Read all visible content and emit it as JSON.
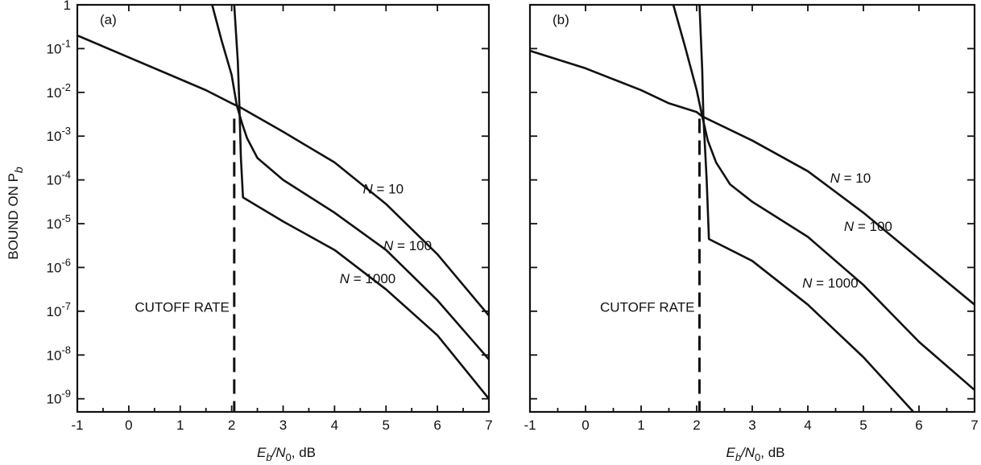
{
  "chart_data": [
    {
      "type": "line",
      "panel_label": "(a)",
      "xlabel": {
        "main": "E",
        "sub1": "b",
        "slash": "/N",
        "sub2": "0",
        "tail": ", dB"
      },
      "ylabel": {
        "main": "BOUND ON P",
        "sub": "b"
      },
      "xlim": [
        -1,
        7
      ],
      "ylim_log10": [
        -9.3,
        0
      ],
      "y_scale": "log",
      "x_ticks": [
        "-1",
        "0",
        "1",
        "2",
        "3",
        "4",
        "5",
        "6",
        "7"
      ],
      "y_ticks": [
        {
          "base": "1",
          "exp": ""
        },
        {
          "base": "10",
          "exp": "-1"
        },
        {
          "base": "10",
          "exp": "-2"
        },
        {
          "base": "10",
          "exp": "-3"
        },
        {
          "base": "10",
          "exp": "-4"
        },
        {
          "base": "10",
          "exp": "-5"
        },
        {
          "base": "10",
          "exp": "-6"
        },
        {
          "base": "10",
          "exp": "-7"
        },
        {
          "base": "10",
          "exp": "-8"
        },
        {
          "base": "10",
          "exp": "-9"
        }
      ],
      "cutoff": {
        "x": 2.05,
        "label": "CUTOFF RATE"
      },
      "series": [
        {
          "name": "N = 10",
          "label_pre": "N",
          "label_post": " = 10",
          "points": [
            [
              -1,
              -0.7
            ],
            [
              0,
              -1.2
            ],
            [
              1,
              -1.7
            ],
            [
              1.5,
              -1.95
            ],
            [
              2,
              -2.25
            ],
            [
              2.15,
              -2.33
            ],
            [
              3,
              -2.9
            ],
            [
              4,
              -3.6
            ],
            [
              5,
              -4.55
            ],
            [
              6,
              -5.7
            ],
            [
              7,
              -7.1
            ]
          ]
        },
        {
          "name": "N = 100",
          "label_pre": "N",
          "label_post": " = 100",
          "points": [
            [
              1.62,
              0
            ],
            [
              1.8,
              -0.8
            ],
            [
              2,
              -1.6
            ],
            [
              2.1,
              -2.3
            ],
            [
              2.2,
              -2.7
            ],
            [
              2.3,
              -3.05
            ],
            [
              2.5,
              -3.5
            ],
            [
              3,
              -4.0
            ],
            [
              4,
              -4.75
            ],
            [
              5,
              -5.6
            ],
            [
              6,
              -6.75
            ],
            [
              7,
              -8.1
            ]
          ]
        },
        {
          "name": "N = 1000",
          "label_pre": "N",
          "label_post": " = 1000",
          "points": [
            [
              2.05,
              0
            ],
            [
              2.12,
              -1.3
            ],
            [
              2.15,
              -2.3
            ],
            [
              2.18,
              -3.5
            ],
            [
              2.22,
              -4.4
            ],
            [
              3,
              -4.95
            ],
            [
              4,
              -5.6
            ],
            [
              5,
              -6.5
            ],
            [
              6,
              -7.55
            ],
            [
              7,
              -9.0
            ]
          ]
        }
      ],
      "annotations": [
        {
          "series": "N = 10",
          "x": 4.55,
          "y": -4.2
        },
        {
          "series": "N = 100",
          "x": 4.95,
          "y": -5.5
        },
        {
          "series": "N = 1000",
          "x": 4.1,
          "y": -6.25
        }
      ]
    },
    {
      "type": "line",
      "panel_label": "(b)",
      "xlabel": {
        "main": "E",
        "sub1": "b",
        "slash": "/N",
        "sub2": "0",
        "tail": ", dB"
      },
      "xlim": [
        -1,
        7
      ],
      "ylim_log10": [
        -9.3,
        0
      ],
      "y_scale": "log",
      "x_ticks": [
        "-1",
        "0",
        "1",
        "2",
        "3",
        "4",
        "5",
        "6",
        "7"
      ],
      "cutoff": {
        "x": 2.05,
        "label": "CUTOFF RATE"
      },
      "series": [
        {
          "name": "N = 10",
          "label_pre": "N",
          "label_post": " = 10",
          "points": [
            [
              -1,
              -1.05
            ],
            [
              0,
              -1.45
            ],
            [
              1,
              -1.95
            ],
            [
              1.5,
              -2.25
            ],
            [
              2,
              -2.45
            ],
            [
              2.1,
              -2.55
            ],
            [
              3,
              -3.1
            ],
            [
              4,
              -3.8
            ],
            [
              5,
              -4.75
            ],
            [
              6,
              -5.8
            ],
            [
              7,
              -6.85
            ]
          ]
        },
        {
          "name": "N = 100",
          "label_pre": "N",
          "label_post": " = 100",
          "points": [
            [
              1.58,
              0
            ],
            [
              1.8,
              -1.0
            ],
            [
              2,
              -1.95
            ],
            [
              2.1,
              -2.55
            ],
            [
              2.2,
              -3.1
            ],
            [
              2.35,
              -3.6
            ],
            [
              2.6,
              -4.1
            ],
            [
              3,
              -4.5
            ],
            [
              4,
              -5.3
            ],
            [
              5,
              -6.4
            ],
            [
              6,
              -7.7
            ],
            [
              7,
              -8.8
            ]
          ]
        },
        {
          "name": "N = 1000",
          "label_pre": "N",
          "label_post": " = 1000",
          "points": [
            [
              2.05,
              0
            ],
            [
              2.1,
              -1.5
            ],
            [
              2.12,
              -2.55
            ],
            [
              2.18,
              -4.0
            ],
            [
              2.22,
              -5.35
            ],
            [
              3,
              -5.85
            ],
            [
              4,
              -6.85
            ],
            [
              5,
              -8.05
            ],
            [
              5.9,
              -9.3
            ]
          ]
        }
      ],
      "annotations": [
        {
          "series": "N = 10",
          "x": 4.4,
          "y": -3.95
        },
        {
          "series": "N = 100",
          "x": 4.65,
          "y": -5.05
        },
        {
          "series": "N = 1000",
          "x": 3.9,
          "y": -6.35
        }
      ]
    }
  ]
}
